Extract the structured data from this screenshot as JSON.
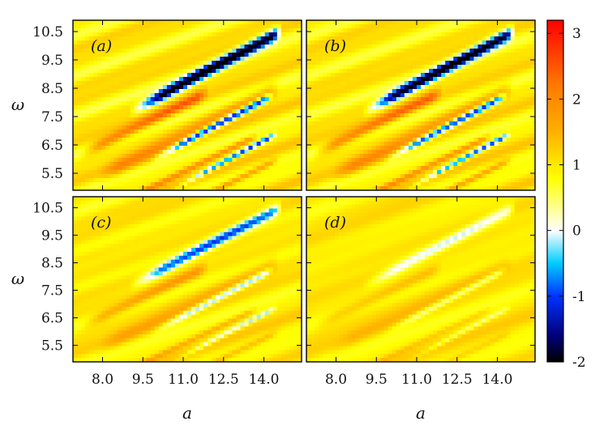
{
  "chart_data": {
    "type": "heatmap",
    "title": "",
    "xlabel": "a",
    "ylabel": "ω",
    "xlim": [
      6.9,
      15.4
    ],
    "ylim": [
      4.9,
      10.9
    ],
    "x_tick_labels": [
      "8.0",
      "9.5",
      "11.0",
      "12.5",
      "14.0"
    ],
    "x_ticks": [
      8.0,
      9.5,
      11.0,
      12.5,
      14.0
    ],
    "y_tick_labels": [
      "10.5",
      "9.5",
      "8.5",
      "7.5",
      "6.5",
      "5.5"
    ],
    "y_ticks": [
      10.5,
      9.5,
      8.5,
      7.5,
      6.5,
      5.5
    ],
    "colorbar": {
      "range": [
        -2,
        3.2
      ],
      "tick_labels": [
        "3",
        "2",
        "1",
        "0",
        "-1",
        "-2"
      ],
      "ticks": [
        3,
        2,
        1,
        0,
        -1,
        -2
      ],
      "colormap": [
        {
          "value": -2.0,
          "color": "#000000"
        },
        {
          "value": -1.6,
          "color": "#00007a"
        },
        {
          "value": -1.0,
          "color": "#0033ff"
        },
        {
          "value": -0.5,
          "color": "#00ccff"
        },
        {
          "value": 0.0,
          "color": "#ffffff"
        },
        {
          "value": 0.8,
          "color": "#ffff00"
        },
        {
          "value": 1.5,
          "color": "#ffb000"
        },
        {
          "value": 2.2,
          "color": "#ff7a00"
        },
        {
          "value": 3.2,
          "color": "#ff0000"
        }
      ]
    },
    "panels": [
      {
        "label": "(a)",
        "intensity": 1.0
      },
      {
        "label": "(b)",
        "intensity": 0.95
      },
      {
        "label": "(c)",
        "intensity": 0.6
      },
      {
        "label": "(d)",
        "intensity": 0.35
      }
    ]
  }
}
